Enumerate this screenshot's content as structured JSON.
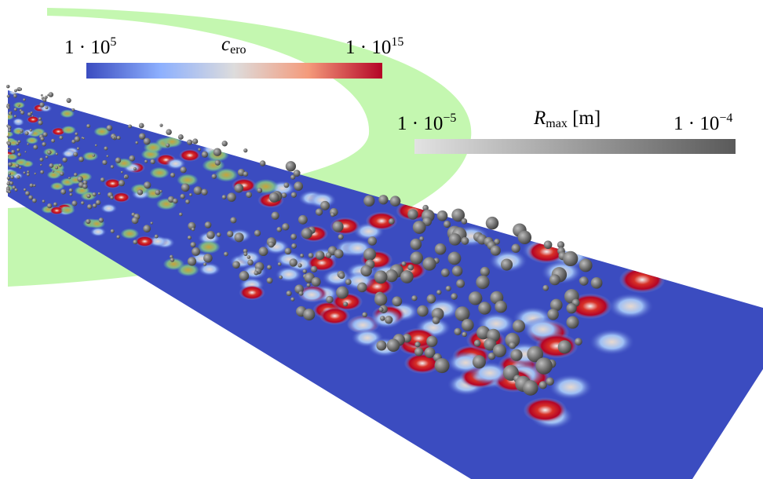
{
  "colorbars": [
    {
      "title": {
        "text": "c",
        "sub": "ero"
      },
      "min_label": {
        "text": "1 · 10",
        "sup": "5"
      },
      "max_label": {
        "text": "1 · 10",
        "sup": "15"
      },
      "colors": [
        "#3b4cc0",
        "#8db0fe",
        "#dddcdc",
        "#f49a7b",
        "#b40426"
      ]
    },
    {
      "title": {
        "text": "R",
        "sub": "max",
        "suffix": " [m]"
      },
      "min_label": {
        "text": "1 · 10",
        "sup": "−5"
      },
      "max_label": {
        "text": "1 · 10",
        "sup": "−4"
      },
      "colors": [
        "#e2e2e2",
        "#5a5a5a"
      ]
    }
  ]
}
